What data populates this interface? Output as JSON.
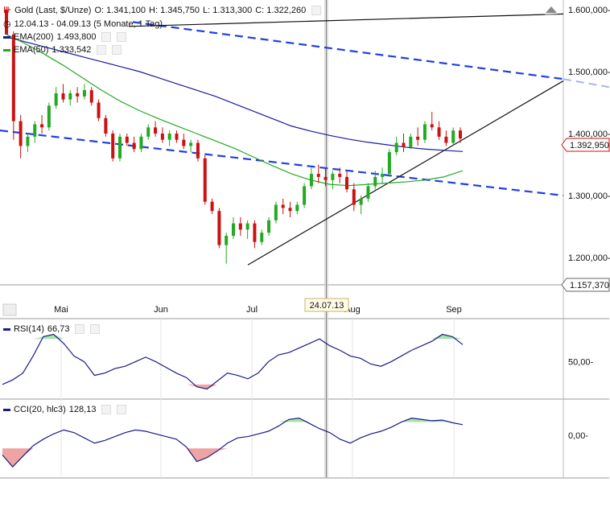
{
  "header": {
    "instrument": "Gold (Last, $/Unze)",
    "open": "O: 1.341,100",
    "high": "H: 1.345,750",
    "low": "L: 1.313,300",
    "close": "C: 1.322,260",
    "range": "12.04.13 - 04.09.13 (5 Monate, 1 Tag)"
  },
  "indicators": {
    "ema200": {
      "label": "EMA(200)",
      "value": "1.493,800",
      "color": "#1a1a9c"
    },
    "ema50": {
      "label": "EMA(50)",
      "value": "1.333,542",
      "color": "#22aa22"
    },
    "rsi": {
      "label": "RSI(14)",
      "value": "66,73"
    },
    "cci": {
      "label": "CCI(20, hlc3)",
      "value": "128,13"
    }
  },
  "crosshair_label": "24.07.13",
  "price_tag": "1.392,950",
  "low_tag": "1.157,370",
  "colors": {
    "up": "#22aa22",
    "down": "#cc1111",
    "trend": "#1f3fe0",
    "rsi_line": "#1a1a8c",
    "ob_fill": "#a6e5a6",
    "os_fill": "#efa4a4"
  },
  "chart_data": [
    {
      "type": "candlestick",
      "title": "Gold (Last, $/Unze)",
      "ylim": [
        1157.37,
        1600
      ],
      "yticks": [
        "1.200,000-",
        "1.300,000-",
        "1.400,000-",
        "1.500,000-",
        "1.600,000-"
      ],
      "xticks": [
        "Mai",
        "Jun",
        "Jul",
        "Aug",
        "Sep"
      ],
      "ema200": [
        1556,
        1548,
        1540,
        1532,
        1524,
        1516,
        1508,
        1500,
        1490,
        1480,
        1470,
        1460,
        1448,
        1436,
        1424,
        1412,
        1404,
        1397,
        1391,
        1386,
        1382,
        1378,
        1375,
        1373,
        1371
      ],
      "ema50": [
        1560,
        1545,
        1528,
        1510,
        1490,
        1470,
        1452,
        1437,
        1424,
        1412,
        1400,
        1388,
        1376,
        1362,
        1348,
        1335,
        1325,
        1318,
        1316,
        1318,
        1320,
        1322,
        1325,
        1330,
        1340
      ],
      "candles": [
        [
          1600,
          1600,
          1560,
          1560
        ],
        [
          1560,
          1565,
          1390,
          1420
        ],
        [
          1420,
          1430,
          1360,
          1380
        ],
        [
          1380,
          1400,
          1370,
          1395
        ],
        [
          1395,
          1420,
          1385,
          1415
        ],
        [
          1415,
          1430,
          1400,
          1410
        ],
        [
          1410,
          1450,
          1405,
          1445
        ],
        [
          1445,
          1475,
          1440,
          1465
        ],
        [
          1465,
          1480,
          1450,
          1455
        ],
        [
          1455,
          1470,
          1445,
          1465
        ],
        [
          1465,
          1475,
          1450,
          1460
        ],
        [
          1460,
          1480,
          1455,
          1470
        ],
        [
          1470,
          1475,
          1445,
          1450
        ],
        [
          1450,
          1455,
          1420,
          1425
        ],
        [
          1425,
          1430,
          1395,
          1400
        ],
        [
          1400,
          1405,
          1355,
          1360
        ],
        [
          1360,
          1400,
          1355,
          1395
        ],
        [
          1395,
          1400,
          1380,
          1385
        ],
        [
          1385,
          1395,
          1370,
          1375
        ],
        [
          1375,
          1400,
          1370,
          1395
        ],
        [
          1395,
          1415,
          1390,
          1410
        ],
        [
          1410,
          1420,
          1395,
          1400
        ],
        [
          1400,
          1410,
          1385,
          1390
        ],
        [
          1390,
          1405,
          1380,
          1400
        ],
        [
          1400,
          1405,
          1385,
          1390
        ],
        [
          1390,
          1400,
          1375,
          1380
        ],
        [
          1380,
          1390,
          1370,
          1385
        ],
        [
          1385,
          1390,
          1355,
          1360
        ],
        [
          1360,
          1365,
          1285,
          1290
        ],
        [
          1290,
          1295,
          1270,
          1275
        ],
        [
          1275,
          1280,
          1215,
          1220
        ],
        [
          1220,
          1240,
          1190,
          1235
        ],
        [
          1235,
          1265,
          1230,
          1255
        ],
        [
          1255,
          1265,
          1235,
          1245
        ],
        [
          1245,
          1260,
          1230,
          1255
        ],
        [
          1255,
          1260,
          1215,
          1225
        ],
        [
          1225,
          1245,
          1220,
          1240
        ],
        [
          1240,
          1265,
          1235,
          1260
        ],
        [
          1260,
          1290,
          1255,
          1285
        ],
        [
          1285,
          1295,
          1270,
          1280
        ],
        [
          1280,
          1290,
          1265,
          1275
        ],
        [
          1275,
          1290,
          1270,
          1285
        ],
        [
          1285,
          1320,
          1280,
          1315
        ],
        [
          1315,
          1345,
          1310,
          1335
        ],
        [
          1335,
          1350,
          1320,
          1330
        ],
        [
          1330,
          1345,
          1315,
          1325
        ],
        [
          1325,
          1340,
          1310,
          1335
        ],
        [
          1335,
          1345,
          1320,
          1330
        ],
        [
          1330,
          1340,
          1305,
          1310
        ],
        [
          1310,
          1320,
          1275,
          1285
        ],
        [
          1285,
          1300,
          1270,
          1295
        ],
        [
          1295,
          1320,
          1290,
          1315
        ],
        [
          1315,
          1340,
          1310,
          1330
        ],
        [
          1330,
          1345,
          1320,
          1335
        ],
        [
          1335,
          1375,
          1330,
          1370
        ],
        [
          1370,
          1395,
          1365,
          1385
        ],
        [
          1385,
          1400,
          1370,
          1378
        ],
        [
          1378,
          1400,
          1375,
          1395
        ],
        [
          1395,
          1410,
          1380,
          1390
        ],
        [
          1390,
          1420,
          1385,
          1415
        ],
        [
          1415,
          1435,
          1405,
          1410
        ],
        [
          1410,
          1420,
          1390,
          1395
        ],
        [
          1395,
          1405,
          1380,
          1385
        ],
        [
          1385,
          1410,
          1380,
          1405
        ],
        [
          1405,
          1410,
          1385,
          1392
        ]
      ]
    },
    {
      "type": "line",
      "title": "RSI(14)",
      "ylim": [
        20,
        85
      ],
      "yticks": [
        "50,00-"
      ],
      "values": [
        30,
        34,
        40,
        55,
        72,
        74,
        66,
        55,
        50,
        38,
        40,
        44,
        46,
        50,
        54,
        50,
        45,
        40,
        36,
        28,
        26,
        33,
        40,
        38,
        35,
        40,
        50,
        56,
        58,
        62,
        66,
        70,
        64,
        60,
        55,
        53,
        48,
        46,
        50,
        55,
        60,
        64,
        68,
        74,
        72,
        65
      ]
    },
    {
      "type": "line",
      "title": "CCI(20, hlc3)",
      "ylim": [
        -300,
        250
      ],
      "yticks": [
        "0,00-"
      ],
      "values": [
        -150,
        -240,
        -160,
        -80,
        -30,
        10,
        40,
        20,
        -20,
        -60,
        -40,
        -10,
        20,
        40,
        30,
        10,
        -10,
        -30,
        -90,
        -200,
        -170,
        -120,
        -60,
        -20,
        -10,
        10,
        30,
        70,
        120,
        130,
        90,
        50,
        20,
        -30,
        -60,
        -20,
        10,
        30,
        60,
        100,
        130,
        120,
        110,
        115,
        95,
        80
      ]
    }
  ]
}
